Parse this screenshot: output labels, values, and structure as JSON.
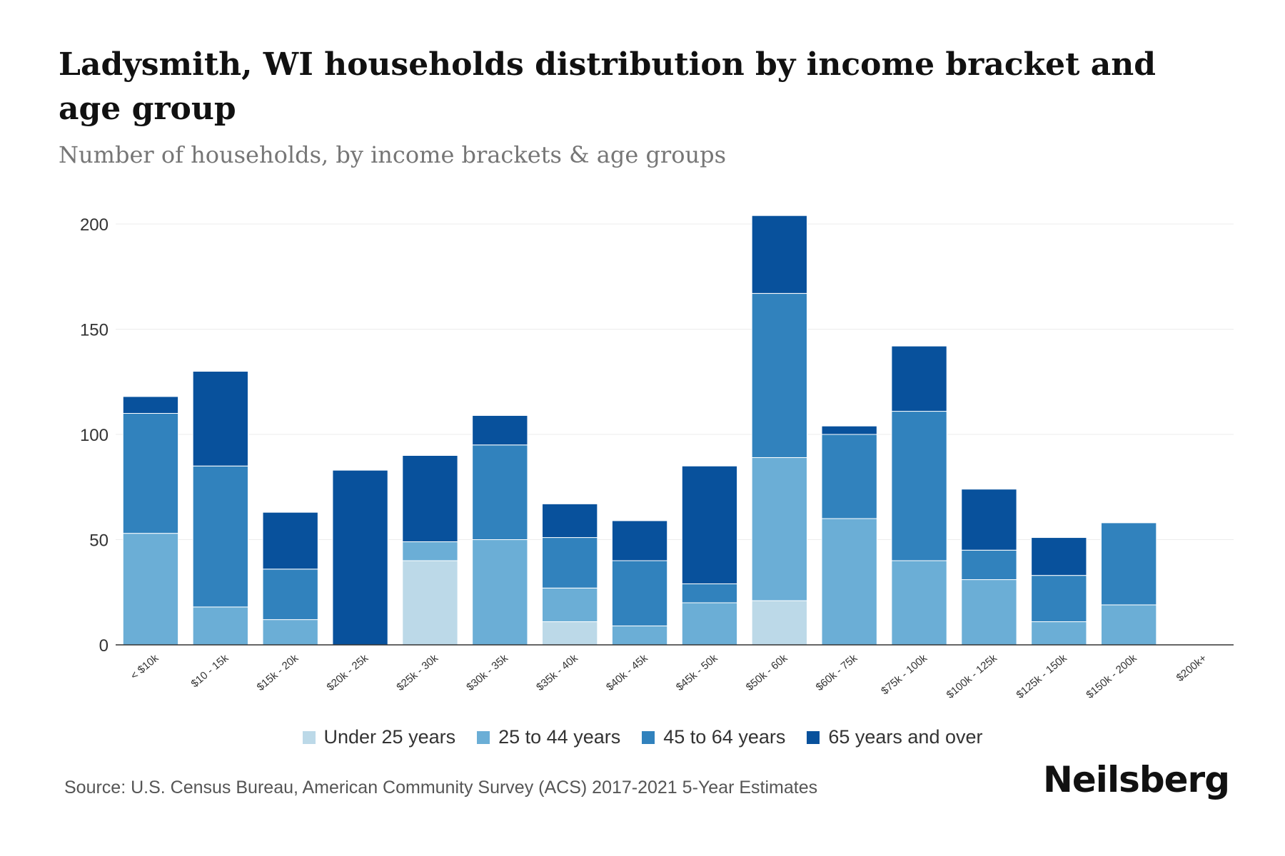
{
  "chart_data": {
    "type": "bar",
    "stacked": true,
    "title": "Ladysmith, WI households distribution by income bracket and age group",
    "subtitle": "Number of households, by income brackets & age groups",
    "xlabel": "",
    "ylabel": "",
    "ylim": [
      0,
      210
    ],
    "yticks": [
      0,
      50,
      100,
      150,
      200
    ],
    "grid": true,
    "legend_position": "bottom",
    "categories": [
      "< $10k",
      "$10 - 15k",
      "$15k - 20k",
      "$20k - 25k",
      "$25k - 30k",
      "$30k - 35k",
      "$35k - 40k",
      "$40k - 45k",
      "$45k - 50k",
      "$50k - 60k",
      "$60k - 75k",
      "$75k - 100k",
      "$100k - 125k",
      "$125k - 150k",
      "$150k - 200k",
      "$200k+"
    ],
    "series": [
      {
        "name": "Under 25 years",
        "color": "#bcd9e8",
        "values": [
          0,
          0,
          0,
          0,
          40,
          0,
          11,
          0,
          0,
          21,
          0,
          0,
          0,
          0,
          0,
          0
        ]
      },
      {
        "name": "25 to 44 years",
        "color": "#6baed6",
        "values": [
          53,
          18,
          12,
          0,
          9,
          50,
          16,
          9,
          20,
          68,
          60,
          40,
          31,
          11,
          19,
          0
        ]
      },
      {
        "name": "45 to 64 years",
        "color": "#3182bd",
        "values": [
          57,
          67,
          24,
          0,
          0,
          45,
          24,
          31,
          9,
          78,
          40,
          71,
          14,
          22,
          39,
          0
        ]
      },
      {
        "name": "65 years and over",
        "color": "#08519c",
        "values": [
          8,
          45,
          27,
          83,
          41,
          14,
          16,
          19,
          56,
          37,
          4,
          31,
          29,
          18,
          0,
          0
        ]
      }
    ]
  },
  "source": "Source: U.S. Census Bureau, American Community Survey (ACS) 2017-2021 5-Year Estimates",
  "brand": "Neilsberg"
}
